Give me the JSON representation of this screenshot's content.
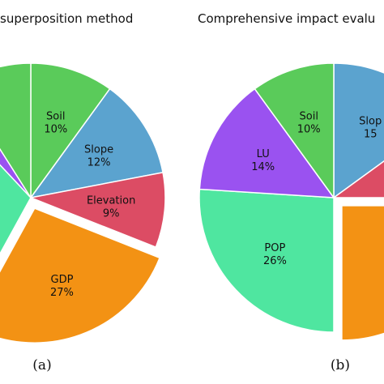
{
  "chart_data": [
    {
      "type": "pie",
      "title": "superposition method",
      "caption": "(a)",
      "slices": [
        {
          "label": "Soil",
          "value": 10,
          "value_text": "10%",
          "color": "#5acb5a"
        },
        {
          "label": "Slope",
          "value": 12,
          "value_text": "12%",
          "color": "#5ba3cf"
        },
        {
          "label": "Elevation",
          "value": 9,
          "value_text": "9%",
          "color": "#dc4c64"
        },
        {
          "label": "GDP",
          "value": 27,
          "value_text": "27%",
          "color": "#f39214",
          "exploded": true
        },
        {
          "label": "",
          "value": 30,
          "value_text": "",
          "color": "#4fe6a0"
        },
        {
          "label": "",
          "value": 3,
          "value_text": "%",
          "color": "#9a52f0"
        },
        {
          "label": "",
          "value": 9,
          "value_text": "",
          "color": "#5acb5a"
        }
      ]
    },
    {
      "type": "pie",
      "title": "Comprehensive impact evalu",
      "caption": "(b)",
      "slices": [
        {
          "label": "Slop",
          "value": 15,
          "value_text": "15",
          "color": "#5ba3cf"
        },
        {
          "label": "",
          "value": 10,
          "value_text": "",
          "color": "#dc4c64"
        },
        {
          "label": "",
          "value": 25,
          "value_text": "",
          "color": "#f39214",
          "exploded": true
        },
        {
          "label": "POP",
          "value": 26,
          "value_text": "26%",
          "color": "#4fe6a0"
        },
        {
          "label": "LU",
          "value": 14,
          "value_text": "14%",
          "color": "#9a52f0"
        },
        {
          "label": "Soil",
          "value": 10,
          "value_text": "10%",
          "color": "#5acb5a"
        }
      ]
    }
  ]
}
